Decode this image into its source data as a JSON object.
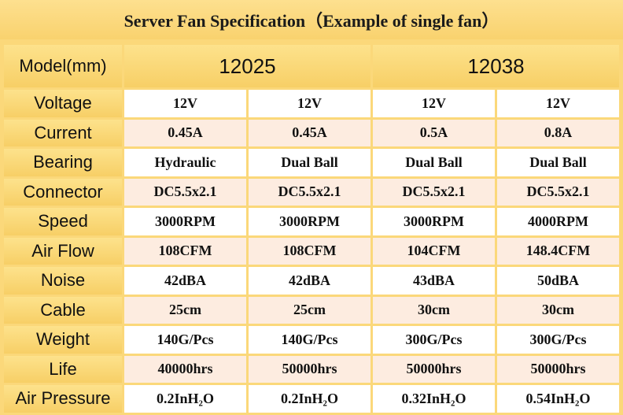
{
  "title": "Server Fan Specification（Example of single fan）",
  "header": {
    "label": "Model(mm)",
    "models": [
      "12025",
      "12038"
    ]
  },
  "rows": [
    {
      "label": "Voltage",
      "values": [
        "12V",
        "12V",
        "12V",
        "12V"
      ]
    },
    {
      "label": "Current",
      "values": [
        "0.45A",
        "0.45A",
        "0.5A",
        "0.8A"
      ]
    },
    {
      "label": "Bearing",
      "values": [
        "Hydraulic",
        "Dual Ball",
        "Dual Ball",
        "Dual Ball"
      ]
    },
    {
      "label": "Connector",
      "values": [
        "DC5.5x2.1",
        "DC5.5x2.1",
        "DC5.5x2.1",
        "DC5.5x2.1"
      ]
    },
    {
      "label": "Speed",
      "values": [
        "3000RPM",
        "3000RPM",
        "3000RPM",
        "4000RPM"
      ]
    },
    {
      "label": "Air Flow",
      "values": [
        "108CFM",
        "108CFM",
        "104CFM",
        "148.4CFM"
      ]
    },
    {
      "label": "Noise",
      "values": [
        "42dBA",
        "42dBA",
        "43dBA",
        "50dBA"
      ]
    },
    {
      "label": "Cable",
      "values": [
        "25cm",
        "25cm",
        "30cm",
        "30cm"
      ]
    },
    {
      "label": "Weight",
      "values": [
        "140G/Pcs",
        "140G/Pcs",
        "300G/Pcs",
        "300G/Pcs"
      ]
    },
    {
      "label": "Life",
      "values": [
        "40000hrs",
        "50000hrs",
        "50000hrs",
        "50000hrs"
      ]
    },
    {
      "label": "Air Pressure",
      "values": [
        "0.2InH₂O",
        "0.2InH₂O",
        "0.32InH₂O",
        "0.54InH₂O"
      ]
    }
  ],
  "colors": {
    "header_gold": "#f9d26e",
    "row_white": "#ffffff",
    "row_peach": "#fdece0"
  }
}
